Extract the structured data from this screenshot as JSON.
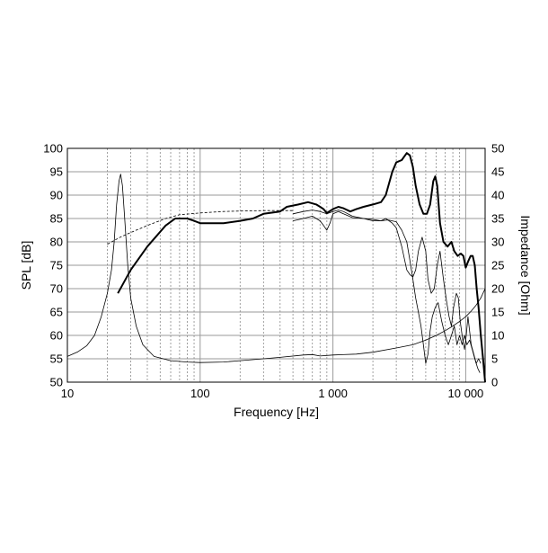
{
  "chart_data": {
    "type": "line",
    "title": "",
    "xlabel": "Frequency [Hz]",
    "ylabel": "SPL [dB]",
    "y2label": "Impedance [Ohm]",
    "xscale": "log",
    "xlim": [
      10,
      14000
    ],
    "ylim": [
      50,
      100
    ],
    "y2lim": [
      0,
      50
    ],
    "grid": true,
    "legend": "none",
    "x_ticks": [
      {
        "value": 10,
        "label": "10"
      },
      {
        "value": 100,
        "label": "100"
      },
      {
        "value": 1000,
        "label": "1 000"
      },
      {
        "value": 10000,
        "label": "10 000"
      }
    ],
    "y_ticks": [
      {
        "value": 50,
        "label": "50"
      },
      {
        "value": 55,
        "label": "55"
      },
      {
        "value": 60,
        "label": "60"
      },
      {
        "value": 65,
        "label": "65"
      },
      {
        "value": 70,
        "label": "70"
      },
      {
        "value": 75,
        "label": "75"
      },
      {
        "value": 80,
        "label": "80"
      },
      {
        "value": 85,
        "label": "85"
      },
      {
        "value": 90,
        "label": "90"
      },
      {
        "value": 95,
        "label": "95"
      },
      {
        "value": 100,
        "label": "100"
      }
    ],
    "y2_ticks": [
      {
        "value": 0,
        "label": "0"
      },
      {
        "value": 5,
        "label": "5"
      },
      {
        "value": 10,
        "label": "10"
      },
      {
        "value": 15,
        "label": "15"
      },
      {
        "value": 20,
        "label": "20"
      },
      {
        "value": 25,
        "label": "25"
      },
      {
        "value": 30,
        "label": "30"
      },
      {
        "value": 35,
        "label": "35"
      },
      {
        "value": 40,
        "label": "40"
      },
      {
        "value": 45,
        "label": "45"
      },
      {
        "value": 50,
        "label": "50"
      }
    ],
    "series": [
      {
        "axis": "left",
        "style": "thick",
        "points": [
          [
            24,
            69
          ],
          [
            30,
            74
          ],
          [
            40,
            79
          ],
          [
            55,
            83.5
          ],
          [
            65,
            85
          ],
          [
            80,
            85
          ],
          [
            90,
            84.5
          ],
          [
            100,
            84
          ],
          [
            150,
            84
          ],
          [
            200,
            84.5
          ],
          [
            250,
            85
          ],
          [
            300,
            86
          ],
          [
            400,
            86.5
          ],
          [
            450,
            87.5
          ],
          [
            550,
            88
          ],
          [
            650,
            88.5
          ],
          [
            750,
            88
          ],
          [
            800,
            87.5
          ],
          [
            850,
            87
          ],
          [
            900,
            86.2
          ],
          [
            1000,
            87
          ],
          [
            1100,
            87.5
          ],
          [
            1200,
            87.2
          ],
          [
            1350,
            86.5
          ],
          [
            1500,
            87
          ],
          [
            1700,
            87.5
          ],
          [
            2000,
            88
          ],
          [
            2300,
            88.5
          ],
          [
            2500,
            90
          ],
          [
            2800,
            95
          ],
          [
            3000,
            97
          ],
          [
            3300,
            97.5
          ],
          [
            3600,
            99
          ],
          [
            3800,
            98.5
          ],
          [
            4000,
            96
          ],
          [
            4200,
            92
          ],
          [
            4500,
            88
          ],
          [
            4800,
            86
          ],
          [
            5100,
            86
          ],
          [
            5400,
            88
          ],
          [
            5700,
            93
          ],
          [
            5900,
            94
          ],
          [
            6100,
            92
          ],
          [
            6400,
            84
          ],
          [
            6800,
            80
          ],
          [
            7300,
            79
          ],
          [
            7800,
            80
          ],
          [
            8200,
            78
          ],
          [
            8700,
            77
          ],
          [
            9200,
            77.5
          ],
          [
            9600,
            77
          ],
          [
            10000,
            74.5
          ],
          [
            10500,
            76
          ],
          [
            10900,
            77
          ],
          [
            11300,
            77
          ],
          [
            11700,
            75
          ],
          [
            12100,
            70
          ],
          [
            12500,
            66
          ],
          [
            13000,
            60
          ],
          [
            13500,
            55
          ],
          [
            14000,
            50
          ]
        ]
      },
      {
        "axis": "left",
        "style": "thin",
        "points": [
          [
            500,
            84.5
          ],
          [
            600,
            85
          ],
          [
            700,
            85.5
          ],
          [
            800,
            84.5
          ],
          [
            850,
            83.5
          ],
          [
            900,
            82.5
          ],
          [
            950,
            84
          ],
          [
            1000,
            86
          ],
          [
            1100,
            86.5
          ],
          [
            1200,
            86
          ],
          [
            1400,
            85.2
          ],
          [
            1700,
            85
          ],
          [
            2000,
            84.8
          ],
          [
            2300,
            84.5
          ],
          [
            2500,
            85
          ],
          [
            2800,
            84
          ],
          [
            3000,
            83
          ],
          [
            3300,
            79
          ],
          [
            3600,
            74
          ],
          [
            3800,
            73
          ],
          [
            4000,
            72.5
          ],
          [
            4200,
            74
          ],
          [
            4400,
            78
          ],
          [
            4700,
            81
          ],
          [
            5000,
            78
          ],
          [
            5200,
            72
          ],
          [
            5500,
            69
          ],
          [
            5800,
            70
          ],
          [
            6100,
            75
          ],
          [
            6400,
            78
          ],
          [
            6800,
            72
          ],
          [
            7200,
            67
          ],
          [
            7500,
            64
          ],
          [
            7800,
            62
          ],
          [
            8100,
            66
          ],
          [
            8500,
            69
          ],
          [
            8800,
            68
          ],
          [
            9100,
            63
          ],
          [
            9500,
            59
          ],
          [
            9800,
            57
          ],
          [
            10100,
            60
          ],
          [
            10400,
            64
          ],
          [
            10700,
            61
          ],
          [
            11000,
            58
          ],
          [
            11500,
            56
          ],
          [
            12000,
            54
          ],
          [
            12500,
            55
          ],
          [
            13000,
            54
          ]
        ]
      },
      {
        "axis": "left",
        "style": "thin",
        "points": [
          [
            500,
            86
          ],
          [
            600,
            86.5
          ],
          [
            700,
            86.8
          ],
          [
            800,
            86.5
          ],
          [
            900,
            86
          ],
          [
            1000,
            86.5
          ],
          [
            1100,
            86.8
          ],
          [
            1200,
            86.5
          ],
          [
            1400,
            85.5
          ],
          [
            1700,
            85
          ],
          [
            2000,
            84.5
          ],
          [
            2300,
            84.5
          ],
          [
            2600,
            84.7
          ],
          [
            3000,
            84.3
          ],
          [
            3300,
            82.5
          ],
          [
            3600,
            80
          ],
          [
            3800,
            76
          ],
          [
            4000,
            72
          ],
          [
            4200,
            68
          ],
          [
            4400,
            65
          ],
          [
            4600,
            62
          ],
          [
            4800,
            58
          ],
          [
            5000,
            54
          ],
          [
            5200,
            56
          ],
          [
            5400,
            61
          ],
          [
            5600,
            64
          ],
          [
            5900,
            66
          ],
          [
            6200,
            67
          ],
          [
            6600,
            63
          ],
          [
            7000,
            60
          ],
          [
            7400,
            58
          ],
          [
            7800,
            60
          ],
          [
            8200,
            62
          ],
          [
            8600,
            58
          ],
          [
            9000,
            60
          ],
          [
            9400,
            58
          ],
          [
            9800,
            60
          ],
          [
            10200,
            58
          ],
          [
            10700,
            59
          ],
          [
            11200,
            57
          ],
          [
            11700,
            55
          ],
          [
            12300,
            53
          ],
          [
            12800,
            52
          ]
        ]
      },
      {
        "axis": "left",
        "style": "dashed",
        "points": [
          [
            20,
            79.5
          ],
          [
            25,
            81
          ],
          [
            30,
            82
          ],
          [
            40,
            83.5
          ],
          [
            55,
            85
          ],
          [
            70,
            85.8
          ],
          [
            100,
            86.2
          ],
          [
            150,
            86.5
          ],
          [
            200,
            86.6
          ],
          [
            300,
            86.7
          ],
          [
            400,
            86.7
          ],
          [
            500,
            86.7
          ]
        ]
      },
      {
        "axis": "right",
        "style": "thin",
        "points": [
          [
            10,
            5.5
          ],
          [
            12,
            6.5
          ],
          [
            14,
            7.8
          ],
          [
            16,
            10
          ],
          [
            18,
            14
          ],
          [
            20,
            19
          ],
          [
            21.5,
            24
          ],
          [
            22.5,
            30
          ],
          [
            23.5,
            38
          ],
          [
            24.5,
            43
          ],
          [
            25.2,
            44.5
          ],
          [
            26,
            42
          ],
          [
            27,
            35
          ],
          [
            28.5,
            25
          ],
          [
            30,
            18
          ],
          [
            33,
            12
          ],
          [
            37,
            8
          ],
          [
            45,
            5.5
          ],
          [
            60,
            4.6
          ],
          [
            80,
            4.3
          ],
          [
            100,
            4.2
          ],
          [
            150,
            4.3
          ],
          [
            200,
            4.6
          ],
          [
            300,
            5
          ],
          [
            400,
            5.3
          ],
          [
            600,
            5.8
          ],
          [
            700,
            5.9
          ],
          [
            800,
            5.6
          ],
          [
            1000,
            5.8
          ],
          [
            1500,
            6
          ],
          [
            2000,
            6.4
          ],
          [
            3000,
            7.3
          ],
          [
            4000,
            8
          ],
          [
            5000,
            9
          ],
          [
            6000,
            10
          ],
          [
            7000,
            11
          ],
          [
            8000,
            12
          ],
          [
            9000,
            13
          ],
          [
            10000,
            14
          ],
          [
            11000,
            15.2
          ],
          [
            12000,
            16.5
          ],
          [
            13000,
            18
          ],
          [
            14000,
            20
          ]
        ]
      }
    ]
  }
}
